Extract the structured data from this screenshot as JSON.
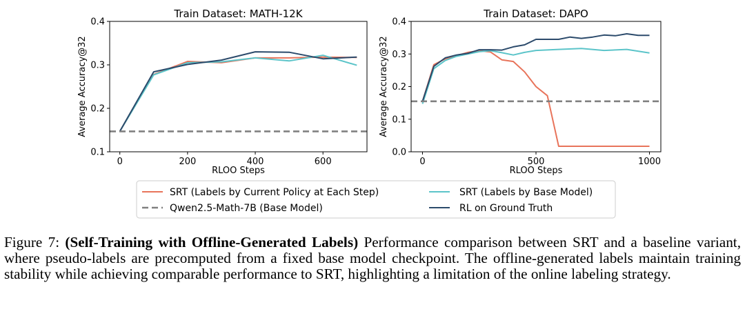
{
  "chart_data": [
    {
      "type": "line",
      "title": "Train Dataset: MATH-12K",
      "xlabel": "RLOO Steps",
      "ylabel": "Average Accuracy@32",
      "xlim": [
        -30,
        730
      ],
      "ylim": [
        0.1,
        0.4
      ],
      "xticks": [
        0,
        200,
        400,
        600
      ],
      "yticks": [
        0.1,
        0.2,
        0.3,
        0.4
      ],
      "xtick_labels": [
        "0",
        "200",
        "400",
        "600"
      ],
      "ytick_labels": [
        "0.1",
        "0.2",
        "0.3",
        "0.4"
      ],
      "grid": false,
      "series": [
        {
          "name": "SRT (Labels by Current Policy at Each Step)",
          "color": "#e8735a",
          "style": "solid",
          "x": [
            0,
            100,
            200,
            300,
            400,
            500,
            600,
            700
          ],
          "y": [
            0.147,
            0.278,
            0.308,
            0.305,
            0.316,
            0.316,
            0.318,
            0.317
          ]
        },
        {
          "name": "SRT (Labels by Base Model)",
          "color": "#5bc4c9",
          "style": "solid",
          "x": [
            0,
            100,
            200,
            300,
            400,
            500,
            600,
            700
          ],
          "y": [
            0.147,
            0.277,
            0.305,
            0.307,
            0.316,
            0.309,
            0.322,
            0.299
          ]
        },
        {
          "name": "RL on Ground Truth",
          "color": "#2b4a6b",
          "style": "solid",
          "x": [
            0,
            100,
            200,
            300,
            400,
            500,
            600,
            700
          ],
          "y": [
            0.147,
            0.284,
            0.301,
            0.311,
            0.33,
            0.329,
            0.314,
            0.318
          ]
        },
        {
          "name": "Qwen2.5-Math-7B (Base Model)",
          "color": "#808080",
          "style": "dashed",
          "x": [
            -30,
            730
          ],
          "y": [
            0.147,
            0.147
          ]
        }
      ]
    },
    {
      "type": "line",
      "title": "Train Dataset: DAPO",
      "xlabel": "RLOO Steps",
      "ylabel": "Average Accuracy@32",
      "xlim": [
        -50,
        1050
      ],
      "ylim": [
        0.0,
        0.4
      ],
      "xticks": [
        0,
        500,
        1000
      ],
      "yticks": [
        0.0,
        0.1,
        0.2,
        0.3,
        0.4
      ],
      "xtick_labels": [
        "0",
        "500",
        "1000"
      ],
      "ytick_labels": [
        "0.0",
        "0.1",
        "0.2",
        "0.3",
        "0.4"
      ],
      "grid": false,
      "series": [
        {
          "name": "SRT (Labels by Current Policy at Each Step)",
          "color": "#e8735a",
          "style": "solid",
          "x": [
            0,
            50,
            100,
            150,
            200,
            250,
            300,
            350,
            400,
            450,
            500,
            550,
            600,
            700,
            800,
            900,
            1000
          ],
          "y": [
            0.155,
            0.267,
            0.285,
            0.295,
            0.305,
            0.31,
            0.306,
            0.282,
            0.277,
            0.245,
            0.2,
            0.172,
            0.017,
            0.017,
            0.017,
            0.017,
            0.017
          ]
        },
        {
          "name": "SRT (Labels by Base Model)",
          "color": "#5bc4c9",
          "style": "solid",
          "x": [
            0,
            50,
            100,
            150,
            200,
            250,
            300,
            350,
            400,
            450,
            500,
            600,
            700,
            800,
            900,
            1000
          ],
          "y": [
            0.147,
            0.255,
            0.28,
            0.293,
            0.3,
            0.307,
            0.31,
            0.304,
            0.297,
            0.305,
            0.311,
            0.314,
            0.317,
            0.311,
            0.314,
            0.303
          ]
        },
        {
          "name": "RL on Ground Truth",
          "color": "#2b4a6b",
          "style": "solid",
          "x": [
            0,
            50,
            100,
            150,
            200,
            250,
            300,
            350,
            400,
            450,
            500,
            550,
            600,
            650,
            700,
            750,
            800,
            850,
            900,
            950,
            1000
          ],
          "y": [
            0.155,
            0.262,
            0.288,
            0.297,
            0.302,
            0.313,
            0.313,
            0.312,
            0.322,
            0.328,
            0.345,
            0.345,
            0.345,
            0.352,
            0.348,
            0.352,
            0.358,
            0.356,
            0.362,
            0.357,
            0.357
          ]
        },
        {
          "name": "Qwen2.5-Math-7B (Base Model)",
          "color": "#808080",
          "style": "dashed",
          "x": [
            -50,
            1050
          ],
          "y": [
            0.155,
            0.155
          ]
        }
      ]
    }
  ],
  "legend": {
    "placement": "bottom-center",
    "entries": [
      {
        "label": "SRT (Labels by Current Policy at Each Step)",
        "color": "#e8735a",
        "style": "solid"
      },
      {
        "label": "SRT (Labels by Base Model)",
        "color": "#5bc4c9",
        "style": "solid"
      },
      {
        "label": "Qwen2.5-Math-7B (Base Model)",
        "color": "#808080",
        "style": "dashed"
      },
      {
        "label": "RL on Ground Truth",
        "color": "#2b4a6b",
        "style": "solid"
      }
    ]
  },
  "caption": {
    "label": "Figure 7:",
    "bold_title": "(Self-Training with Offline-Generated Labels)",
    "text": "Performance comparison between SRT and a baseline variant, where pseudo-labels are precomputed from a fixed base model checkpoint. The offline-generated labels maintain training stability while achieving comparable performance to SRT, highlighting a limitation of the online labeling strategy."
  }
}
